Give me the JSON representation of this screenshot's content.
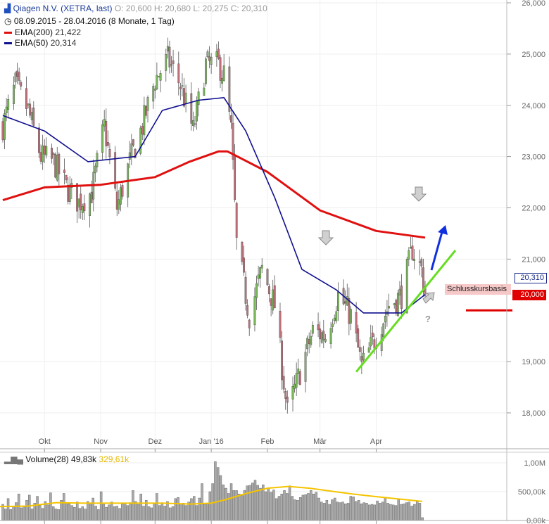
{
  "header": {
    "title": "Qiagen N.V. (XETRA, last)",
    "open": "O: 20,600",
    "high": "H: 20,680",
    "low": "L: 20,275",
    "close": "C: 20,310",
    "period": "08.09.2015 - 28.04.2016 (8 Monate, 1 Tag)",
    "ema200_label": "EMA(200)",
    "ema200_value": "21,422",
    "ema50_label": "EMA(50)",
    "ema50_value": "20,314"
  },
  "volume_legend": {
    "label": "Volume(28)",
    "value": "49,83k",
    "avg": "329,61k"
  },
  "annotations": {
    "support_label": "Schlusskursbasis",
    "support_value": "20,000",
    "last_price": "20,310",
    "question": "?"
  },
  "colors": {
    "ema200": "#e01010",
    "ema50": "#101090",
    "up_candle": "#7ab85a",
    "down_candle": "#c0707a",
    "trendline": "#66dd22",
    "arrow": "#1030e0",
    "volume_bar": "#a9a9a9",
    "volume_avg": "#f5c400"
  },
  "chart_data": {
    "type": "candlestick",
    "x_range": [
      "2015-09-08",
      "2016-04-28"
    ],
    "xticks": [
      "Okt",
      "Nov",
      "Dez",
      "Jan '16",
      "Feb",
      "Mär",
      "Apr"
    ],
    "y_axis": {
      "min": 17500,
      "max": 26000,
      "ticks": [
        "26,000",
        "25,000",
        "24,000",
        "23,000",
        "22,000",
        "21,000",
        "19,000",
        "18,000"
      ]
    },
    "close_path": [
      [
        "2015-09-08",
        23.6
      ],
      [
        "2015-09-15",
        24.4
      ],
      [
        "2015-09-22",
        23.9
      ],
      [
        "2015-09-29",
        23.0
      ],
      [
        "2015-10-06",
        22.9
      ],
      [
        "2015-10-13",
        22.4
      ],
      [
        "2015-10-20",
        22.1
      ],
      [
        "2015-10-27",
        22.3
      ],
      [
        "2015-11-03",
        23.6
      ],
      [
        "2015-11-10",
        22.0
      ],
      [
        "2015-11-17",
        22.9
      ],
      [
        "2015-11-24",
        23.6
      ],
      [
        "2015-12-01",
        24.5
      ],
      [
        "2015-12-08",
        24.9
      ],
      [
        "2015-12-15",
        24.4
      ],
      [
        "2015-12-22",
        23.5
      ],
      [
        "2015-12-29",
        24.8
      ],
      [
        "2016-01-05",
        24.8
      ],
      [
        "2016-01-08",
        24.6
      ],
      [
        "2016-01-12",
        23.5
      ],
      [
        "2016-01-15",
        21.3
      ],
      [
        "2016-01-22",
        19.9
      ],
      [
        "2016-01-29",
        20.8
      ],
      [
        "2016-02-05",
        20.1
      ],
      [
        "2016-02-12",
        18.0
      ],
      [
        "2016-02-19",
        18.8
      ],
      [
        "2016-02-26",
        19.6
      ],
      [
        "2016-03-04",
        19.5
      ],
      [
        "2016-03-11",
        20.3
      ],
      [
        "2016-03-18",
        19.9
      ],
      [
        "2016-03-24",
        18.9
      ],
      [
        "2016-04-01",
        19.5
      ],
      [
        "2016-04-08",
        20.1
      ],
      [
        "2016-04-15",
        20.3
      ],
      [
        "2016-04-21",
        21.2
      ],
      [
        "2016-04-26",
        20.8
      ],
      [
        "2016-04-28",
        20.31
      ]
    ],
    "series": [
      {
        "name": "EMA(200)",
        "values": [
          [
            "2015-09-08",
            22.15
          ],
          [
            "2015-10-01",
            22.4
          ],
          [
            "2015-11-01",
            22.45
          ],
          [
            "2015-12-01",
            22.6
          ],
          [
            "2015-12-20",
            22.9
          ],
          [
            "2016-01-05",
            23.1
          ],
          [
            "2016-01-10",
            23.1
          ],
          [
            "2016-02-01",
            22.7
          ],
          [
            "2016-03-01",
            21.95
          ],
          [
            "2016-04-01",
            21.55
          ],
          [
            "2016-04-28",
            21.42
          ]
        ]
      },
      {
        "name": "EMA(50)",
        "values": [
          [
            "2015-09-08",
            23.8
          ],
          [
            "2015-10-01",
            23.5
          ],
          [
            "2015-10-25",
            22.9
          ],
          [
            "2015-11-20",
            23.0
          ],
          [
            "2015-12-05",
            23.9
          ],
          [
            "2015-12-25",
            24.1
          ],
          [
            "2016-01-08",
            24.15
          ],
          [
            "2016-01-20",
            23.5
          ],
          [
            "2016-02-05",
            22.2
          ],
          [
            "2016-02-20",
            20.8
          ],
          [
            "2016-03-10",
            20.4
          ],
          [
            "2016-03-25",
            19.95
          ],
          [
            "2016-04-15",
            19.95
          ],
          [
            "2016-04-28",
            20.31
          ]
        ]
      }
    ],
    "trendline": [
      [
        "2016-03-21",
        18.8
      ],
      [
        "2016-04-28",
        20.2
      ]
    ],
    "support_level": 20.0,
    "volume": {
      "y_axis": {
        "min": 0,
        "max": 1000000,
        "ticks": [
          "1,00M",
          "500,00k",
          "0,00k"
        ]
      },
      "bars": [
        280,
        200,
        380,
        190,
        250,
        310,
        460,
        220,
        240,
        350,
        440,
        200,
        300,
        420,
        260,
        210,
        330,
        270,
        480,
        240,
        200,
        190,
        350,
        470,
        300,
        290,
        260,
        230,
        320,
        210,
        240,
        200,
        330,
        300,
        390,
        250,
        190,
        500,
        280,
        230,
        270,
        320,
        240,
        250,
        210,
        290,
        300,
        260,
        310,
        520,
        330,
        280,
        460,
        250,
        350,
        240,
        220,
        300,
        470,
        260,
        310,
        250,
        330,
        220,
        240,
        380,
        400,
        290,
        300,
        260,
        320,
        380,
        420,
        260,
        390,
        640,
        280,
        300,
        500,
        640,
        1020,
        920,
        780,
        620,
        560,
        470,
        640,
        520,
        520,
        460,
        430,
        520,
        600,
        610,
        650,
        700,
        610,
        560,
        620,
        500,
        560,
        490,
        530,
        380,
        420,
        460,
        520,
        470,
        600,
        420,
        360,
        350,
        400,
        440,
        450,
        470,
        520,
        460,
        490,
        390,
        320,
        300,
        350,
        280,
        360,
        390,
        320,
        310,
        320,
        290,
        300,
        420,
        410,
        330,
        350,
        290,
        310,
        300,
        270,
        280,
        270,
        340,
        300,
        320,
        390,
        300,
        280,
        270,
        260,
        360,
        280,
        290,
        310,
        320,
        250,
        280,
        330,
        300,
        50
      ],
      "avg_points": [
        [
          0,
          240
        ],
        [
          40,
          250
        ],
        [
          80,
          310
        ],
        [
          120,
          300
        ],
        [
          160,
          300
        ],
        [
          200,
          300
        ],
        [
          230,
          300
        ],
        [
          270,
          285
        ],
        [
          300,
          300
        ],
        [
          320,
          360
        ],
        [
          350,
          470
        ],
        [
          380,
          560
        ],
        [
          410,
          590
        ],
        [
          440,
          560
        ],
        [
          470,
          510
        ],
        [
          500,
          460
        ],
        [
          530,
          420
        ],
        [
          560,
          380
        ],
        [
          600,
          330
        ]
      ]
    }
  }
}
